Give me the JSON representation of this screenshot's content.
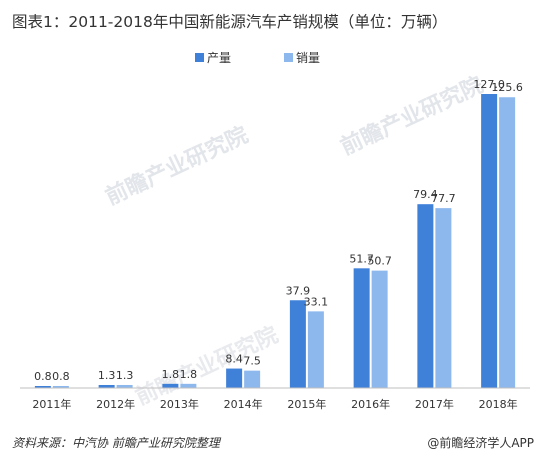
{
  "chart_data": {
    "type": "bar",
    "title": "图表1：2011-2018年中国新能源汽车产销规模（单位：万辆）",
    "categories": [
      "2011年",
      "2012年",
      "2013年",
      "2014年",
      "2015年",
      "2016年",
      "2017年",
      "2018年"
    ],
    "series": [
      {
        "name": "产量",
        "color": "#3f80d9",
        "values": [
          0.8,
          1.3,
          1.8,
          8.4,
          37.9,
          51.7,
          79.4,
          127.0
        ],
        "labels": [
          "0.8",
          "1.3",
          "1.8",
          "8.4",
          "37.9",
          "51.7",
          "79.4",
          "127.0"
        ]
      },
      {
        "name": "销量",
        "color": "#8db8ee",
        "values": [
          0.8,
          1.3,
          1.8,
          7.5,
          33.1,
          50.7,
          77.7,
          125.6
        ],
        "labels": [
          "0.8",
          "1.3",
          "1.8",
          "7.5",
          "33.1",
          "50.7",
          "77.7",
          "125.6"
        ]
      }
    ],
    "legend_position": "top-center",
    "grid": false,
    "ylim": [
      0,
      130
    ]
  },
  "source": "资料来源：中汽协 前瞻产业研究院整理",
  "brand": "@前瞻经济学人APP",
  "watermark": "前瞻产业研究院",
  "colors": {
    "axis": "#bfbfbf",
    "text": "#333333"
  }
}
